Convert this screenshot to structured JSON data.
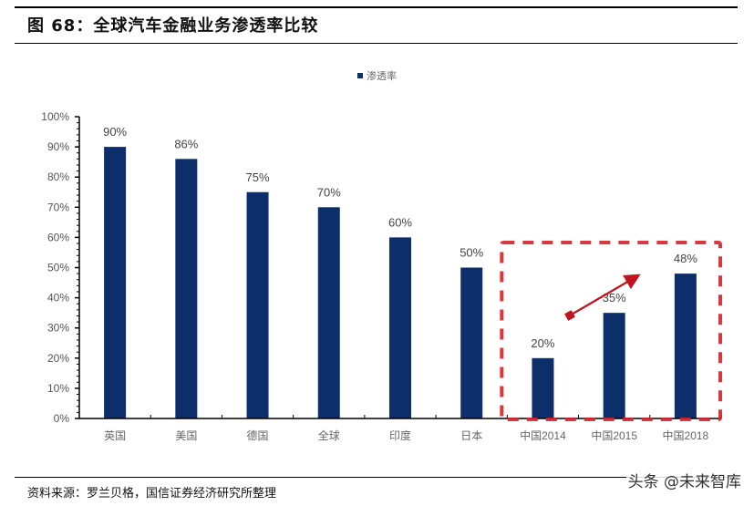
{
  "header": {
    "figure_title": "图 68：全球汽车金融业务渗透率比较"
  },
  "footer": {
    "source": "资料来源：罗兰贝格，国信证券经济研究所整理",
    "watermark": "头条 @未来智库"
  },
  "colors": {
    "bar": "#0c2f6b",
    "highlight_box": "#d3222c",
    "arrow": "#c0141e",
    "axis": "#000000"
  },
  "legend": {
    "label": "渗透率"
  },
  "chart_data": {
    "type": "bar",
    "title": "全球汽车金融业务渗透率比较",
    "xlabel": "",
    "ylabel": "",
    "ylim": [
      0,
      100
    ],
    "yticks": [
      "0%",
      "10%",
      "20%",
      "30%",
      "40%",
      "50%",
      "60%",
      "70%",
      "80%",
      "90%",
      "100%"
    ],
    "grid": false,
    "legend_position": "top",
    "categories": [
      "英国",
      "美国",
      "德国",
      "全球",
      "印度",
      "日本",
      "中国2014",
      "中国2015",
      "中国2018"
    ],
    "series": [
      {
        "name": "渗透率",
        "values": [
          90,
          86,
          75,
          70,
          60,
          50,
          20,
          35,
          48
        ]
      }
    ],
    "data_labels": [
      "90%",
      "86%",
      "75%",
      "70%",
      "60%",
      "50%",
      "20%",
      "35%",
      "48%"
    ],
    "annotations": [
      {
        "type": "dashed-rectangle",
        "covers": [
          "中国2014",
          "中国2015",
          "中国2018"
        ]
      },
      {
        "type": "arrow",
        "direction": "up-right",
        "from": "中国2014",
        "to": "中国2018"
      }
    ]
  }
}
